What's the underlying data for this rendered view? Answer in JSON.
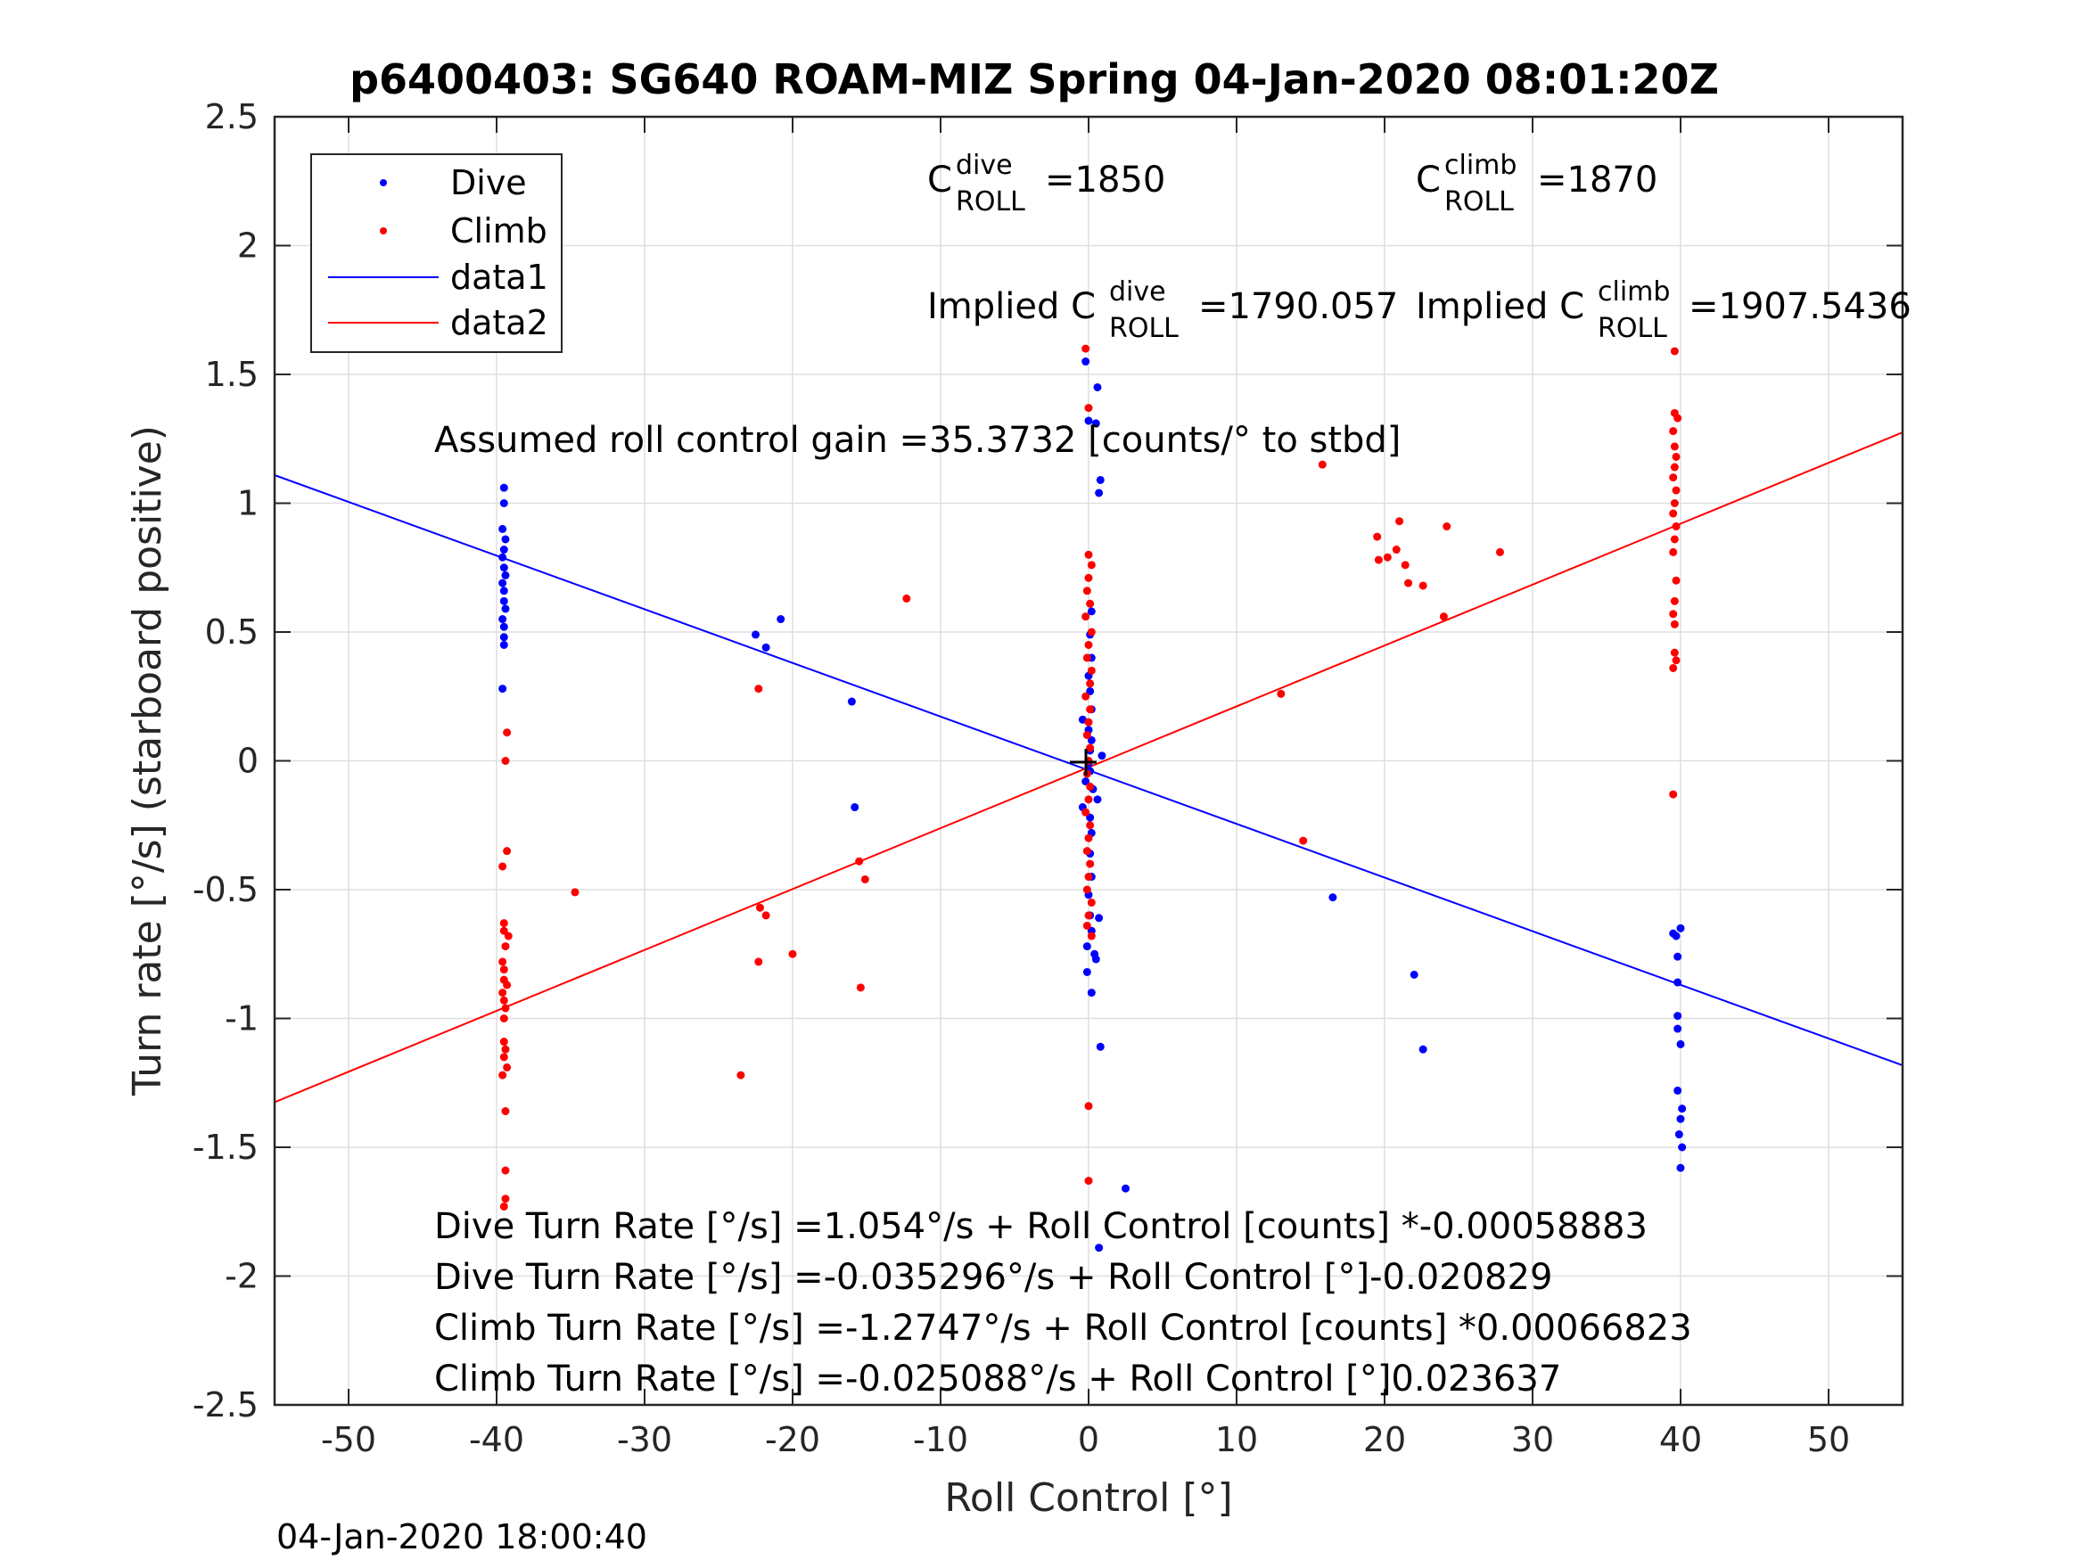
{
  "chart_data": {
    "type": "scatter",
    "title": "p6400403: SG640 ROAM-MIZ Spring 04-Jan-2020 08:01:20Z",
    "xlabel": "Roll Control [°]",
    "ylabel": "Turn rate [°/s] (starboard positive)",
    "xlim": [
      -55,
      55
    ],
    "ylim": [
      -2.5,
      2.5
    ],
    "xticks": [
      -50,
      -40,
      -30,
      -20,
      -10,
      0,
      10,
      20,
      30,
      40,
      50
    ],
    "yticks": [
      -2.5,
      -2,
      -1.5,
      -1,
      -0.5,
      0,
      0.5,
      1,
      1.5,
      2,
      2.5
    ],
    "xtick_labels": [
      "-50",
      "-40",
      "-30",
      "-20",
      "-10",
      "0",
      "10",
      "20",
      "30",
      "40",
      "50"
    ],
    "ytick_labels": [
      "-2.5",
      "-2",
      "-1.5",
      "-1",
      "-0.5",
      "0",
      "0.5",
      "1",
      "1.5",
      "2",
      "2.5"
    ],
    "grid": true,
    "legend_position": "top-left",
    "series": [
      {
        "name": "Dive",
        "kind": "points",
        "color": "#0000ff",
        "points": [
          [
            -39.5,
            1.06
          ],
          [
            -39.5,
            1.0
          ],
          [
            -39.6,
            0.9
          ],
          [
            -39.4,
            0.86
          ],
          [
            -39.5,
            0.82
          ],
          [
            -39.6,
            0.79
          ],
          [
            -39.5,
            0.75
          ],
          [
            -39.4,
            0.72
          ],
          [
            -39.6,
            0.69
          ],
          [
            -39.5,
            0.66
          ],
          [
            -39.5,
            0.62
          ],
          [
            -39.4,
            0.59
          ],
          [
            -39.6,
            0.55
          ],
          [
            -39.5,
            0.52
          ],
          [
            -39.5,
            0.48
          ],
          [
            -39.5,
            0.45
          ],
          [
            -39.6,
            0.28
          ],
          [
            -22.5,
            0.49
          ],
          [
            -21.8,
            0.44
          ],
          [
            -20.8,
            0.55
          ],
          [
            -16.0,
            0.23
          ],
          [
            -15.8,
            -0.18
          ],
          [
            -0.2,
            1.55
          ],
          [
            0.0,
            1.32
          ],
          [
            0.6,
            1.45
          ],
          [
            0.5,
            1.31
          ],
          [
            0.8,
            1.09
          ],
          [
            0.7,
            1.04
          ],
          [
            0.2,
            0.58
          ],
          [
            0.1,
            0.49
          ],
          [
            0.2,
            0.4
          ],
          [
            0.0,
            0.33
          ],
          [
            0.1,
            0.27
          ],
          [
            0.2,
            0.2
          ],
          [
            -0.4,
            0.16
          ],
          [
            0.0,
            0.12
          ],
          [
            0.2,
            0.08
          ],
          [
            0.1,
            0.04
          ],
          [
            0.9,
            0.02
          ],
          [
            0.0,
            -0.01
          ],
          [
            0.1,
            -0.04
          ],
          [
            -0.2,
            -0.08
          ],
          [
            0.3,
            -0.11
          ],
          [
            0.6,
            -0.15
          ],
          [
            -0.4,
            -0.18
          ],
          [
            0.1,
            -0.22
          ],
          [
            0.2,
            -0.28
          ],
          [
            0.1,
            -0.36
          ],
          [
            0.2,
            -0.45
          ],
          [
            0.0,
            -0.52
          ],
          [
            0.1,
            -0.6
          ],
          [
            0.7,
            -0.61
          ],
          [
            0.2,
            -0.66
          ],
          [
            -0.1,
            -0.72
          ],
          [
            0.4,
            -0.75
          ],
          [
            -0.1,
            -0.82
          ],
          [
            0.2,
            -0.9
          ],
          [
            0.8,
            -1.11
          ],
          [
            2.5,
            -1.66
          ],
          [
            0.7,
            -1.89
          ],
          [
            0.5,
            -0.77
          ],
          [
            16.5,
            -0.53
          ],
          [
            22.0,
            -0.83
          ],
          [
            22.6,
            -1.12
          ],
          [
            39.5,
            -0.67
          ],
          [
            39.7,
            -0.68
          ],
          [
            40.0,
            -0.65
          ],
          [
            39.8,
            -0.76
          ],
          [
            39.8,
            -0.86
          ],
          [
            39.8,
            -0.99
          ],
          [
            39.8,
            -1.04
          ],
          [
            40.0,
            -1.1
          ],
          [
            39.8,
            -1.28
          ],
          [
            40.1,
            -1.35
          ],
          [
            40.0,
            -1.39
          ],
          [
            39.9,
            -1.45
          ],
          [
            40.1,
            -1.5
          ],
          [
            40.0,
            -1.58
          ]
        ]
      },
      {
        "name": "Climb",
        "kind": "points",
        "color": "#ff0000",
        "points": [
          [
            -39.3,
            0.11
          ],
          [
            -39.4,
            0.0
          ],
          [
            -39.3,
            -0.35
          ],
          [
            -39.6,
            -0.41
          ],
          [
            -39.5,
            -0.63
          ],
          [
            -39.5,
            -0.66
          ],
          [
            -39.2,
            -0.68
          ],
          [
            -39.4,
            -0.72
          ],
          [
            -39.6,
            -0.78
          ],
          [
            -39.5,
            -0.81
          ],
          [
            -39.5,
            -0.85
          ],
          [
            -39.3,
            -0.87
          ],
          [
            -39.6,
            -0.9
          ],
          [
            -39.5,
            -0.93
          ],
          [
            -39.4,
            -0.96
          ],
          [
            -39.5,
            -1.0
          ],
          [
            -39.5,
            -1.09
          ],
          [
            -39.4,
            -1.12
          ],
          [
            -39.5,
            -1.15
          ],
          [
            -39.3,
            -1.19
          ],
          [
            -39.6,
            -1.22
          ],
          [
            -39.4,
            -1.36
          ],
          [
            -39.4,
            -1.59
          ],
          [
            -39.4,
            -1.7
          ],
          [
            -39.5,
            -1.73
          ],
          [
            -34.7,
            -0.51
          ],
          [
            -23.5,
            -1.22
          ],
          [
            -22.3,
            0.28
          ],
          [
            -22.2,
            -0.57
          ],
          [
            -21.8,
            -0.6
          ],
          [
            -22.3,
            -0.78
          ],
          [
            -20.0,
            -0.75
          ],
          [
            -15.5,
            -0.39
          ],
          [
            -15.1,
            -0.46
          ],
          [
            -15.4,
            -0.88
          ],
          [
            -12.3,
            0.63
          ],
          [
            -0.2,
            1.6
          ],
          [
            0.0,
            1.37
          ],
          [
            0.0,
            0.8
          ],
          [
            0.2,
            0.76
          ],
          [
            0.0,
            0.71
          ],
          [
            -0.1,
            0.66
          ],
          [
            0.1,
            0.61
          ],
          [
            -0.2,
            0.56
          ],
          [
            0.2,
            0.5
          ],
          [
            0.0,
            0.45
          ],
          [
            -0.1,
            0.4
          ],
          [
            0.2,
            0.35
          ],
          [
            0.1,
            0.3
          ],
          [
            -0.2,
            0.25
          ],
          [
            0.1,
            0.2
          ],
          [
            0.0,
            0.15
          ],
          [
            -0.1,
            0.1
          ],
          [
            0.1,
            0.05
          ],
          [
            0.0,
            0.0
          ],
          [
            -0.1,
            -0.05
          ],
          [
            0.1,
            -0.1
          ],
          [
            0.0,
            -0.15
          ],
          [
            -0.2,
            -0.2
          ],
          [
            0.1,
            -0.25
          ],
          [
            0.0,
            -0.3
          ],
          [
            -0.1,
            -0.35
          ],
          [
            0.1,
            -0.4
          ],
          [
            0.0,
            -0.45
          ],
          [
            -0.1,
            -0.5
          ],
          [
            0.2,
            -0.55
          ],
          [
            0.0,
            -0.6
          ],
          [
            -0.1,
            -0.64
          ],
          [
            0.2,
            -0.68
          ],
          [
            0.0,
            -1.34
          ],
          [
            0.0,
            -1.63
          ],
          [
            13.0,
            0.26
          ],
          [
            14.5,
            -0.31
          ],
          [
            15.8,
            1.15
          ],
          [
            19.5,
            0.87
          ],
          [
            19.6,
            0.78
          ],
          [
            20.2,
            0.79
          ],
          [
            20.8,
            0.82
          ],
          [
            21.0,
            0.93
          ],
          [
            21.4,
            0.76
          ],
          [
            21.6,
            0.69
          ],
          [
            22.6,
            0.68
          ],
          [
            24.2,
            0.91
          ],
          [
            24.0,
            0.56
          ],
          [
            27.8,
            0.81
          ],
          [
            39.6,
            1.59
          ],
          [
            39.6,
            1.35
          ],
          [
            39.8,
            1.33
          ],
          [
            39.5,
            1.28
          ],
          [
            39.6,
            1.22
          ],
          [
            39.7,
            1.18
          ],
          [
            39.6,
            1.14
          ],
          [
            39.5,
            1.1
          ],
          [
            39.7,
            1.05
          ],
          [
            39.6,
            1.0
          ],
          [
            39.5,
            0.96
          ],
          [
            39.7,
            0.91
          ],
          [
            39.6,
            0.86
          ],
          [
            39.5,
            0.81
          ],
          [
            39.7,
            0.7
          ],
          [
            39.6,
            0.62
          ],
          [
            39.5,
            0.57
          ],
          [
            39.6,
            0.53
          ],
          [
            39.6,
            0.42
          ],
          [
            39.7,
            0.39
          ],
          [
            39.5,
            0.36
          ],
          [
            39.5,
            -0.13
          ]
        ]
      },
      {
        "name": "data1",
        "kind": "line",
        "color": "#0000ff",
        "x": [
          -55,
          55
        ],
        "y": [
          1.109,
          -1.182
        ]
      },
      {
        "name": "data2",
        "kind": "line",
        "color": "#ff0000",
        "x": [
          -55,
          55
        ],
        "y": [
          -1.325,
          1.275
        ]
      }
    ],
    "annotations": {
      "c_dive": {
        "base": "C",
        "sup": "dive",
        "sub": "ROLL",
        "value": "=1850"
      },
      "c_climb": {
        "base": "C",
        "sup": "climb",
        "sub": "ROLL",
        "value": "=1870"
      },
      "implied_dive": {
        "prefix": "Implied C",
        "sup": "dive",
        "sub": "ROLL",
        "value": "=1790.057"
      },
      "implied_climb": {
        "prefix": "Implied C",
        "sup": "climb",
        "sub": "ROLL",
        "value": "=1907.5436"
      },
      "gain": "Assumed roll control gain =35.3732 [counts/° to stbd]",
      "fits": [
        "Dive Turn Rate [°/s] =1.054°/s + Roll Control [counts] *-0.00058883",
        "Dive Turn Rate [°/s] =-0.035296°/s + Roll Control [°]-0.020829",
        "Climb Turn Rate [°/s] =-1.2747°/s + Roll Control [counts] *0.00066823",
        "Climb Turn Rate [°/s] =-0.025088°/s + Roll Control [°]0.023637"
      ]
    },
    "timestamp": "04-Jan-2020 18:00:40"
  }
}
